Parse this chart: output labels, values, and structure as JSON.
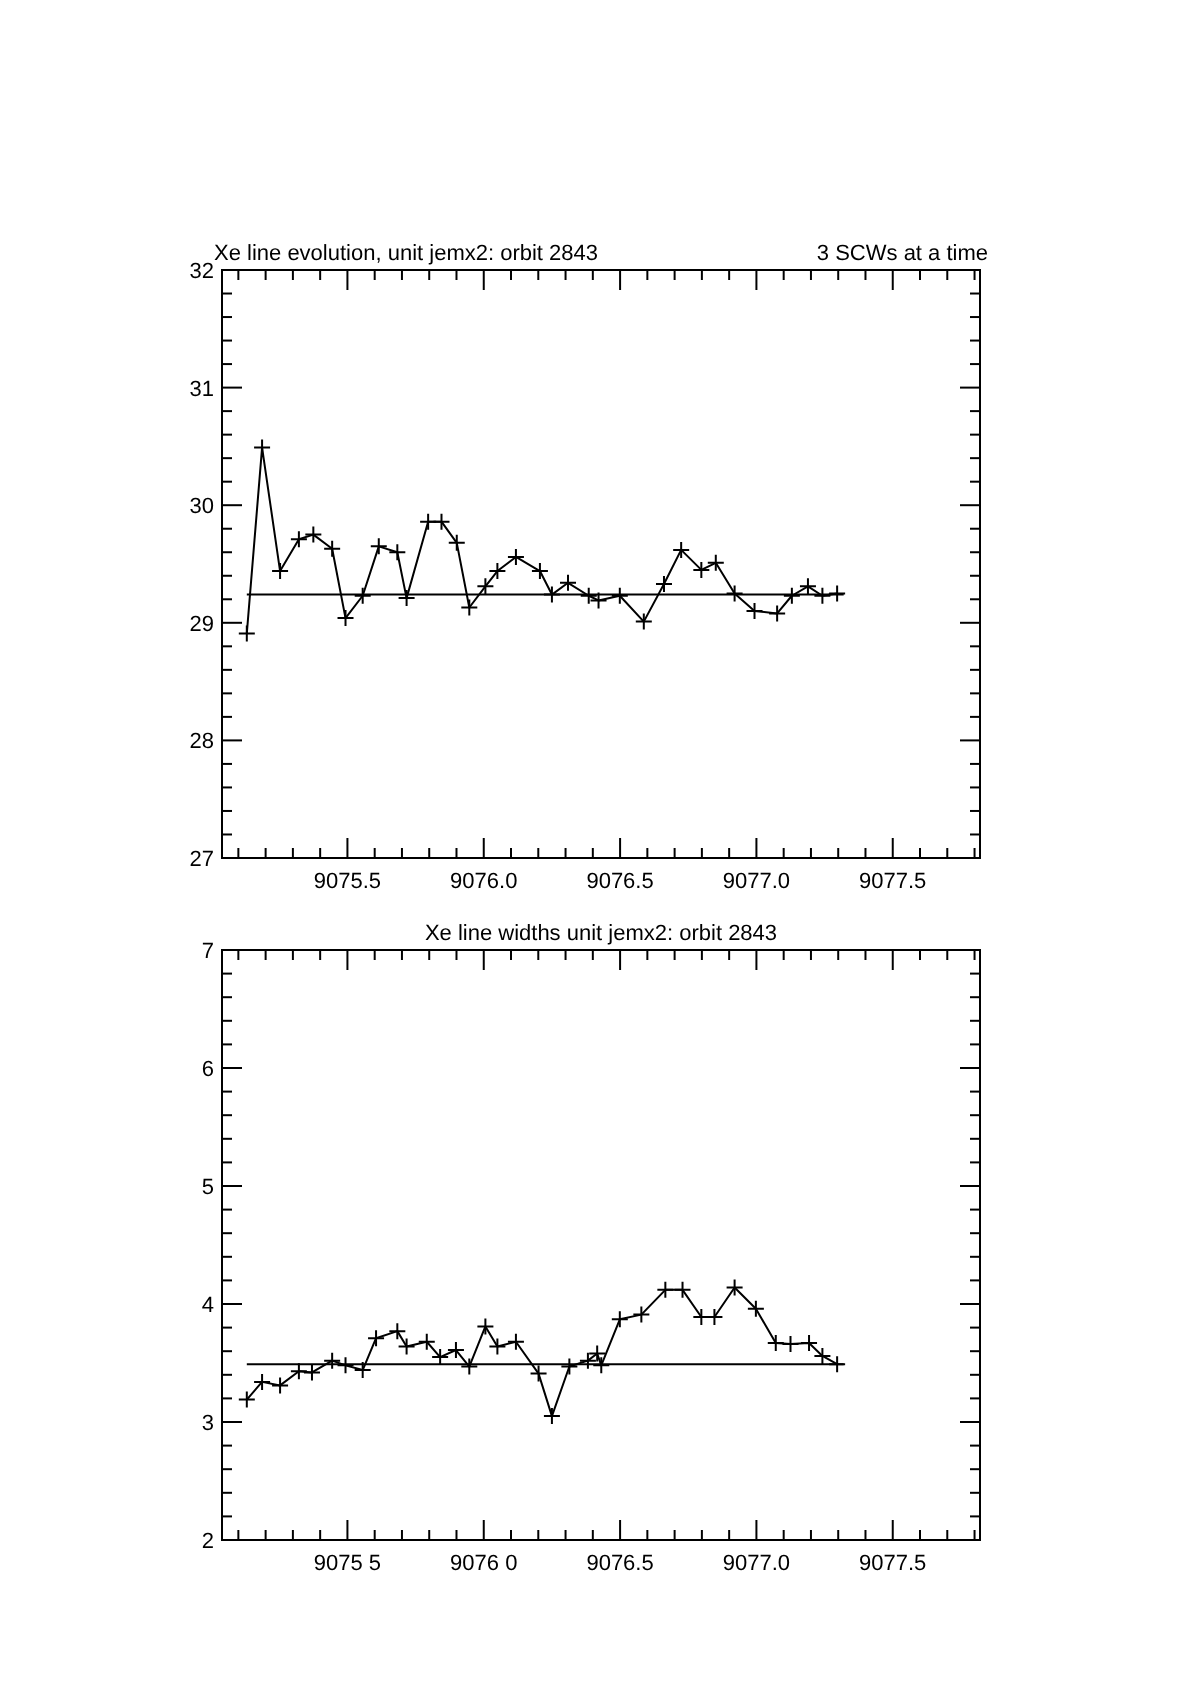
{
  "chart_data": [
    {
      "type": "line",
      "title": "Xe line evolution, unit jemx2: orbit 2843",
      "subtitle": "3 SCWs at a time",
      "grid": false,
      "marker": "cross",
      "xlim": [
        9075.04,
        9077.82
      ],
      "ylim": [
        27,
        32
      ],
      "xticks": [
        {
          "value": 9075.1,
          "label": null
        },
        {
          "value": 9075.2,
          "label": null
        },
        {
          "value": 9075.3,
          "label": null
        },
        {
          "value": 9075.4,
          "label": null
        },
        {
          "value": 9075.5,
          "label": "9075.5"
        },
        {
          "value": 9075.6,
          "label": null
        },
        {
          "value": 9075.7,
          "label": null
        },
        {
          "value": 9075.8,
          "label": null
        },
        {
          "value": 9075.9,
          "label": null
        },
        {
          "value": 9076.0,
          "label": "9076.0"
        },
        {
          "value": 9076.1,
          "label": null
        },
        {
          "value": 9076.2,
          "label": null
        },
        {
          "value": 9076.3,
          "label": null
        },
        {
          "value": 9076.4,
          "label": null
        },
        {
          "value": 9076.5,
          "label": "9076.5"
        },
        {
          "value": 9076.6,
          "label": null
        },
        {
          "value": 9076.7,
          "label": null
        },
        {
          "value": 9076.8,
          "label": null
        },
        {
          "value": 9076.9,
          "label": null
        },
        {
          "value": 9077.0,
          "label": "9077.0"
        },
        {
          "value": 9077.1,
          "label": null
        },
        {
          "value": 9077.2,
          "label": null
        },
        {
          "value": 9077.3,
          "label": null
        },
        {
          "value": 9077.4,
          "label": null
        },
        {
          "value": 9077.5,
          "label": "9077.5"
        },
        {
          "value": 9077.6,
          "label": null
        },
        {
          "value": 9077.7,
          "label": null
        },
        {
          "value": 9077.8,
          "label": null
        }
      ],
      "yticks": [
        27,
        {
          "value": 27.2,
          "label": null
        },
        {
          "value": 27.4,
          "label": null
        },
        {
          "value": 27.6,
          "label": null
        },
        {
          "value": 27.8,
          "label": null
        },
        28,
        {
          "value": 28.2,
          "label": null
        },
        {
          "value": 28.4,
          "label": null
        },
        {
          "value": 28.6,
          "label": null
        },
        {
          "value": 28.8,
          "label": null
        },
        29,
        {
          "value": 29.2,
          "label": null
        },
        {
          "value": 29.4,
          "label": null
        },
        {
          "value": 29.6,
          "label": null
        },
        {
          "value": 29.8,
          "label": null
        },
        30,
        {
          "value": 30.2,
          "label": null
        },
        {
          "value": 30.4,
          "label": null
        },
        {
          "value": 30.6,
          "label": null
        },
        {
          "value": 30.8,
          "label": null
        },
        31,
        {
          "value": 31.2,
          "label": null
        },
        {
          "value": 31.4,
          "label": null
        },
        {
          "value": 31.6,
          "label": null
        },
        {
          "value": 31.8,
          "label": null
        },
        32
      ],
      "series": [
        {
          "color": "#000000",
          "x": [
            9075.131,
            9075.187,
            9075.253,
            9075.322,
            9075.375,
            9075.444,
            9075.493,
            9075.556,
            9075.615,
            9075.683,
            9075.717,
            9075.796,
            9075.845,
            9075.901,
            9075.947,
            9076.006,
            9076.05,
            9076.118,
            9076.206,
            9076.25,
            9076.309,
            9076.385,
            9076.421,
            9076.499,
            9076.587,
            9076.661,
            9076.724,
            9076.798,
            9076.851,
            9076.92,
            9076.993,
            9077.076,
            9077.13,
            9077.189,
            9077.242,
            9077.296
          ],
          "values": [
            28.91,
            30.49,
            29.44,
            29.71,
            29.75,
            29.63,
            29.04,
            29.23,
            29.65,
            29.6,
            29.21,
            29.86,
            29.86,
            29.68,
            29.13,
            29.31,
            29.44,
            29.56,
            29.44,
            29.24,
            29.34,
            29.23,
            29.19,
            29.23,
            29.01,
            29.33,
            29.62,
            29.45,
            29.51,
            29.25,
            29.1,
            29.08,
            29.23,
            29.31,
            29.23,
            29.25
          ]
        },
        {
          "color": "#000000",
          "marker": "none",
          "x": [
            9075.131,
            9077.32
          ],
          "values": [
            29.24,
            29.24
          ]
        }
      ]
    },
    {
      "type": "line",
      "title": "Xe line widths unit jemx2: orbit 2843",
      "grid": false,
      "marker": "cross",
      "xlim": [
        9075.04,
        9077.82
      ],
      "ylim": [
        2,
        7
      ],
      "xticks": [
        {
          "value": 9075.1,
          "label": null
        },
        {
          "value": 9075.2,
          "label": null
        },
        {
          "value": 9075.3,
          "label": null
        },
        {
          "value": 9075.4,
          "label": null
        },
        {
          "value": 9075.5,
          "label": "9075 5"
        },
        {
          "value": 9075.6,
          "label": null
        },
        {
          "value": 9075.7,
          "label": null
        },
        {
          "value": 9075.8,
          "label": null
        },
        {
          "value": 9075.9,
          "label": null
        },
        {
          "value": 9076.0,
          "label": "9076 0"
        },
        {
          "value": 9076.1,
          "label": null
        },
        {
          "value": 9076.2,
          "label": null
        },
        {
          "value": 9076.3,
          "label": null
        },
        {
          "value": 9076.4,
          "label": null
        },
        {
          "value": 9076.5,
          "label": "9076.5"
        },
        {
          "value": 9076.6,
          "label": null
        },
        {
          "value": 9076.7,
          "label": null
        },
        {
          "value": 9076.8,
          "label": null
        },
        {
          "value": 9076.9,
          "label": null
        },
        {
          "value": 9077.0,
          "label": "9077.0"
        },
        {
          "value": 9077.1,
          "label": null
        },
        {
          "value": 9077.2,
          "label": null
        },
        {
          "value": 9077.3,
          "label": null
        },
        {
          "value": 9077.4,
          "label": null
        },
        {
          "value": 9077.5,
          "label": "9077.5"
        },
        {
          "value": 9077.6,
          "label": null
        },
        {
          "value": 9077.7,
          "label": null
        },
        {
          "value": 9077.8,
          "label": null
        }
      ],
      "yticks": [
        2,
        {
          "value": 2.2,
          "label": null
        },
        {
          "value": 2.4,
          "label": null
        },
        {
          "value": 2.6,
          "label": null
        },
        {
          "value": 2.8,
          "label": null
        },
        3,
        {
          "value": 3.2,
          "label": null
        },
        {
          "value": 3.4,
          "label": null
        },
        {
          "value": 3.6,
          "label": null
        },
        {
          "value": 3.8,
          "label": null
        },
        4,
        {
          "value": 4.2,
          "label": null
        },
        {
          "value": 4.4,
          "label": null
        },
        {
          "value": 4.6,
          "label": null
        },
        {
          "value": 4.8,
          "label": null
        },
        5,
        {
          "value": 5.2,
          "label": null
        },
        {
          "value": 5.4,
          "label": null
        },
        {
          "value": 5.6,
          "label": null
        },
        {
          "value": 5.8,
          "label": null
        },
        6,
        {
          "value": 6.2,
          "label": null
        },
        {
          "value": 6.4,
          "label": null
        },
        {
          "value": 6.6,
          "label": null
        },
        {
          "value": 6.8,
          "label": null
        },
        7
      ],
      "series": [
        {
          "color": "#000000",
          "x": [
            9075.131,
            9075.187,
            9075.253,
            9075.322,
            9075.37,
            9075.444,
            9075.493,
            9075.556,
            9075.605,
            9075.683,
            9075.717,
            9075.791,
            9075.84,
            9075.898,
            9075.947,
            9076.006,
            9076.05,
            9076.118,
            9076.201,
            9076.25,
            9076.314,
            9076.382,
            9076.416,
            9076.431,
            9076.499,
            9076.578,
            9076.666,
            9076.729,
            9076.798,
            9076.846,
            9076.92,
            9076.998,
            9077.071,
            9077.125,
            9077.193,
            9077.242,
            9077.296
          ],
          "values": [
            3.19,
            3.34,
            3.31,
            3.43,
            3.42,
            3.52,
            3.48,
            3.44,
            3.71,
            3.77,
            3.64,
            3.68,
            3.55,
            3.61,
            3.47,
            3.81,
            3.64,
            3.68,
            3.41,
            3.05,
            3.47,
            3.52,
            3.58,
            3.48,
            3.87,
            3.91,
            4.12,
            4.12,
            3.89,
            3.89,
            4.14,
            3.96,
            3.67,
            3.66,
            3.67,
            3.56,
            3.49
          ]
        },
        {
          "color": "#000000",
          "marker": "none",
          "x": [
            9075.131,
            9077.32
          ],
          "values": [
            3.49,
            3.49
          ]
        }
      ]
    }
  ]
}
